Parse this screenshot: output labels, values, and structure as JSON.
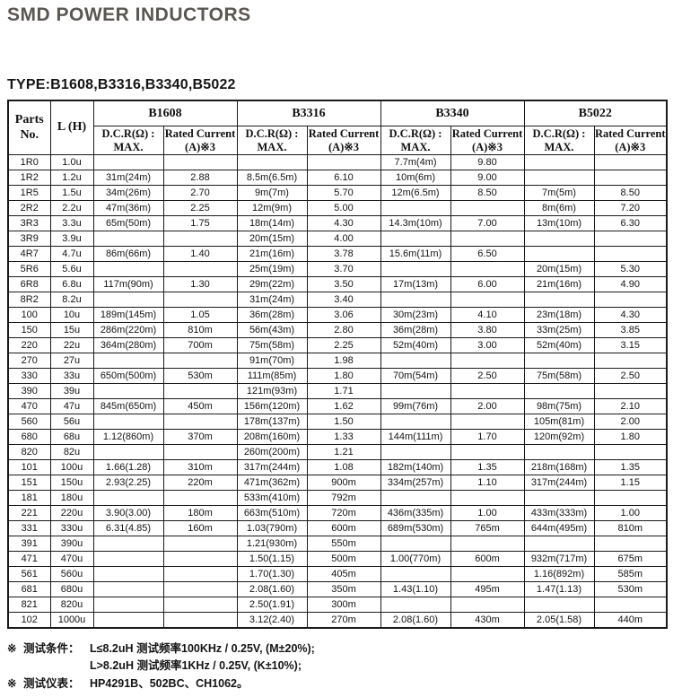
{
  "page": {
    "title": "SMD POWER INDUCTORS",
    "type_line": "TYPE:B1608,B3316,B3340,B5022"
  },
  "colors": {
    "title_gray": "#5a5753",
    "text": "#141414",
    "table_border": "#1a1a1a",
    "background": "#ffffff"
  },
  "table": {
    "corner": {
      "parts_line1": "Parts",
      "parts_line2": "No.",
      "l_header": "L (H)"
    },
    "groups": [
      "B1608",
      "B3316",
      "B3340",
      "B5022"
    ],
    "sub": {
      "dcr_line1": "D.C.R(Ω) :",
      "dcr_line2": "MAX.",
      "rated_line1": "Rated Current",
      "rated_line2": "(A)※3"
    },
    "rows": [
      {
        "part": "1R0",
        "l": "1.0u",
        "cells": [
          "",
          "",
          "",
          "",
          "7.7m(4m)",
          "9.80",
          "",
          ""
        ]
      },
      {
        "part": "1R2",
        "l": "1.2u",
        "cells": [
          "31m(24m)",
          "2.88",
          "8.5m(6.5m)",
          "6.10",
          "10m(6m)",
          "9.00",
          "",
          ""
        ]
      },
      {
        "part": "1R5",
        "l": "1.5u",
        "cells": [
          "34m(26m)",
          "2.70",
          "9m(7m)",
          "5.70",
          "12m(6.5m)",
          "8.50",
          "7m(5m)",
          "8.50"
        ]
      },
      {
        "part": "2R2",
        "l": "2.2u",
        "cells": [
          "47m(36m)",
          "2.25",
          "12m(9m)",
          "5.00",
          "",
          "",
          "8m(6m)",
          "7.20"
        ]
      },
      {
        "part": "3R3",
        "l": "3.3u",
        "cells": [
          "65m(50m)",
          "1.75",
          "18m(14m)",
          "4.30",
          "14.3m(10m)",
          "7.00",
          "13m(10m)",
          "6.30"
        ]
      },
      {
        "part": "3R9",
        "l": "3.9u",
        "cells": [
          "",
          "",
          "20m(15m)",
          "4.00",
          "",
          "",
          "",
          ""
        ]
      },
      {
        "part": "4R7",
        "l": "4.7u",
        "cells": [
          "86m(66m)",
          "1.40",
          "21m(16m)",
          "3.78",
          "15.6m(11m)",
          "6.50",
          "",
          ""
        ]
      },
      {
        "part": "5R6",
        "l": "5.6u",
        "cells": [
          "",
          "",
          "25m(19m)",
          "3.70",
          "",
          "",
          "20m(15m)",
          "5.30"
        ]
      },
      {
        "part": "6R8",
        "l": "6.8u",
        "cells": [
          "117m(90m)",
          "1.30",
          "29m(22m)",
          "3.50",
          "17m(13m)",
          "6.00",
          "21m(16m)",
          "4.90"
        ]
      },
      {
        "part": "8R2",
        "l": "8.2u",
        "cells": [
          "",
          "",
          "31m(24m)",
          "3.40",
          "",
          "",
          "",
          ""
        ]
      },
      {
        "part": "100",
        "l": "10u",
        "cells": [
          "189m(145m)",
          "1.05",
          "36m(28m)",
          "3.06",
          "30m(23m)",
          "4.10",
          "23m(18m)",
          "4.30"
        ]
      },
      {
        "part": "150",
        "l": "15u",
        "cells": [
          "286m(220m)",
          "810m",
          "56m(43m)",
          "2.80",
          "36m(28m)",
          "3.80",
          "33m(25m)",
          "3.85"
        ]
      },
      {
        "part": "220",
        "l": "22u",
        "cells": [
          "364m(280m)",
          "700m",
          "75m(58m)",
          "2.25",
          "52m(40m)",
          "3.00",
          "52m(40m)",
          "3.15"
        ]
      },
      {
        "part": "270",
        "l": "27u",
        "cells": [
          "",
          "",
          "91m(70m)",
          "1.98",
          "",
          "",
          "",
          ""
        ]
      },
      {
        "part": "330",
        "l": "33u",
        "cells": [
          "650m(500m)",
          "530m",
          "111m(85m)",
          "1.80",
          "70m(54m)",
          "2.50",
          "75m(58m)",
          "2.50"
        ]
      },
      {
        "part": "390",
        "l": "39u",
        "cells": [
          "",
          "",
          "121m(93m)",
          "1.71",
          "",
          "",
          "",
          ""
        ]
      },
      {
        "part": "470",
        "l": "47u",
        "cells": [
          "845m(650m)",
          "450m",
          "156m(120m)",
          "1.62",
          "99m(76m)",
          "2.00",
          "98m(75m)",
          "2.10"
        ]
      },
      {
        "part": "560",
        "l": "56u",
        "cells": [
          "",
          "",
          "178m(137m)",
          "1.50",
          "",
          "",
          "105m(81m)",
          "2.00"
        ]
      },
      {
        "part": "680",
        "l": "68u",
        "cells": [
          "1.12(860m)",
          "370m",
          "208m(160m)",
          "1.33",
          "144m(111m)",
          "1.70",
          "120m(92m)",
          "1.80"
        ]
      },
      {
        "part": "820",
        "l": "82u",
        "cells": [
          "",
          "",
          "260m(200m)",
          "1.21",
          "",
          "",
          "",
          ""
        ]
      },
      {
        "part": "101",
        "l": "100u",
        "cells": [
          "1.66(1.28)",
          "310m",
          "317m(244m)",
          "1.08",
          "182m(140m)",
          "1.35",
          "218m(168m)",
          "1.35"
        ]
      },
      {
        "part": "151",
        "l": "150u",
        "cells": [
          "2.93(2.25)",
          "220m",
          "471m(362m)",
          "900m",
          "334m(257m)",
          "1.10",
          "317m(244m)",
          "1.15"
        ]
      },
      {
        "part": "181",
        "l": "180u",
        "cells": [
          "",
          "",
          "533m(410m)",
          "792m",
          "",
          "",
          "",
          ""
        ]
      },
      {
        "part": "221",
        "l": "220u",
        "cells": [
          "3.90(3.00)",
          "180m",
          "663m(510m)",
          "720m",
          "436m(335m)",
          "1.00",
          "433m(333m)",
          "1.00"
        ]
      },
      {
        "part": "331",
        "l": "330u",
        "cells": [
          "6.31(4.85)",
          "160m",
          "1.03(790m)",
          "600m",
          "689m(530m)",
          "765m",
          "644m(495m)",
          "810m"
        ]
      },
      {
        "part": "391",
        "l": "390u",
        "cells": [
          "",
          "",
          "1.21(930m)",
          "550m",
          "",
          "",
          "",
          ""
        ]
      },
      {
        "part": "471",
        "l": "470u",
        "cells": [
          "",
          "",
          "1.50(1.15)",
          "500m",
          "1.00(770m)",
          "600m",
          "932m(717m)",
          "675m"
        ]
      },
      {
        "part": "561",
        "l": "560u",
        "cells": [
          "",
          "",
          "1.70(1.30)",
          "405m",
          "",
          "",
          "1.16(892m)",
          "585m"
        ]
      },
      {
        "part": "681",
        "l": "680u",
        "cells": [
          "",
          "",
          "2.08(1.60)",
          "350m",
          "1.43(1.10)",
          "495m",
          "1.47(1.13)",
          "530m"
        ]
      },
      {
        "part": "821",
        "l": "820u",
        "cells": [
          "",
          "",
          "2.50(1.91)",
          "300m",
          "",
          "",
          "",
          ""
        ]
      },
      {
        "part": "102",
        "l": "1000u",
        "cells": [
          "",
          "",
          "3.12(2.40)",
          "270m",
          "2.08(1.60)",
          "430m",
          "2.05(1.58)",
          "440m"
        ]
      }
    ]
  },
  "notes": [
    {
      "mark": "※",
      "label": "测试条件：",
      "text": "L≤8.2uH 测试频率100KHz / 0.25V, (M±20%);"
    },
    {
      "mark": "",
      "label": "",
      "text": "L>8.2uH 测试频率1KHz / 0.25V, (K±10%);"
    },
    {
      "mark": "※",
      "label": "测试仪表：",
      "text": "HP4291B、502BC、CH1062。"
    }
  ]
}
